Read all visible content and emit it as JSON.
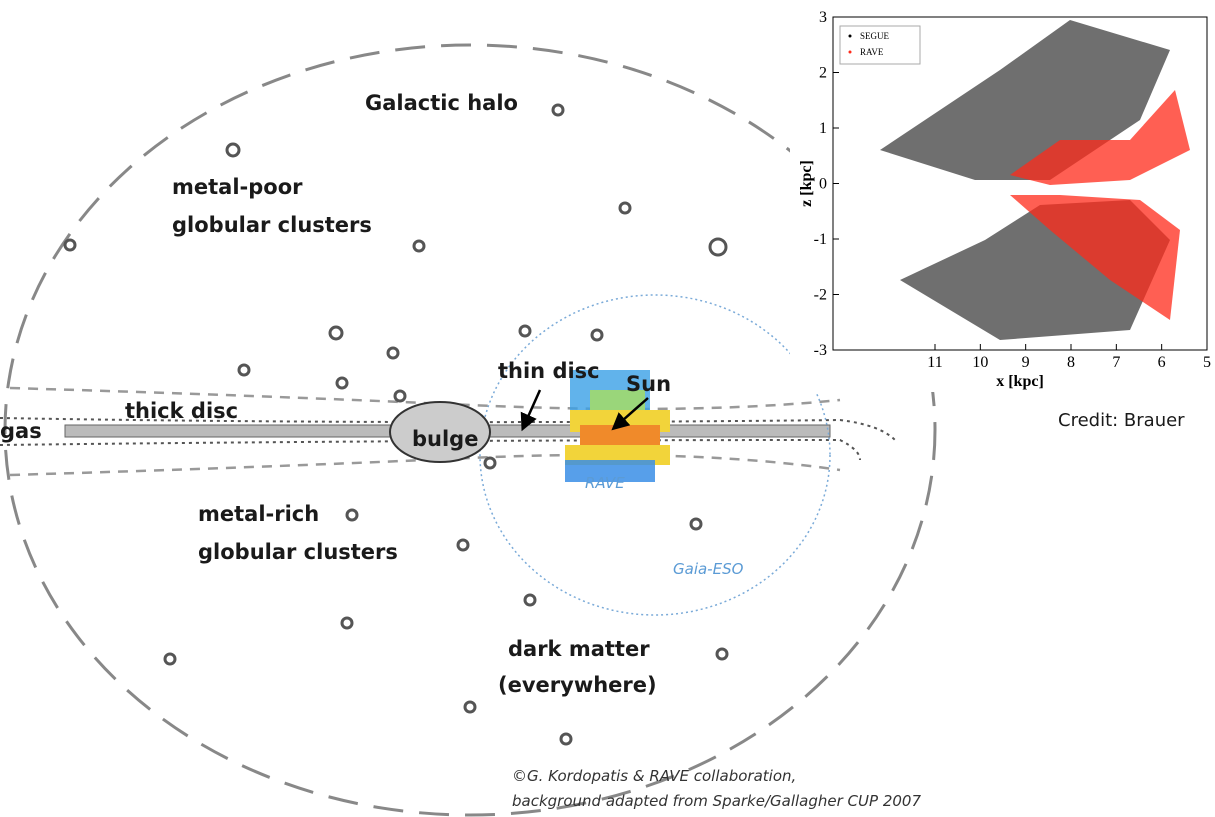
{
  "labels": {
    "halo": "Galactic halo",
    "metal_poor": [
      "metal-poor",
      "globular clusters"
    ],
    "thin_disc": "thin disc",
    "sun": "Sun",
    "thick_disc": "thick disc",
    "gas": "gas",
    "bulge": "bulge",
    "metal_rich": [
      "metal-rich",
      "globular clusters"
    ],
    "rave": "RAVE",
    "gaia_eso": "Gaia-ESO",
    "dark_matter": [
      "dark matter",
      "(everywhere)"
    ]
  },
  "credits": [
    "©G. Kordopatis & RAVE collaboration,",
    "background adapted from Sparke/Gallagher CUP 2007"
  ],
  "inset_credit": "Credit: Brauer",
  "chart_data": {
    "type": "scatter",
    "xlabel": "x [kpc]",
    "ylabel": "z [kpc]",
    "xlim": [
      13.25,
      5
    ],
    "ylim": [
      -3,
      3
    ],
    "xticks": [
      11,
      10,
      9,
      8,
      7,
      6,
      5
    ],
    "yticks": [
      -3,
      -2,
      -1,
      0,
      1,
      2,
      3
    ],
    "legend": "upper left",
    "series": [
      {
        "name": "SEGUE",
        "color": "#000000"
      },
      {
        "name": "RAVE",
        "color": "#ff2a1a"
      }
    ]
  }
}
